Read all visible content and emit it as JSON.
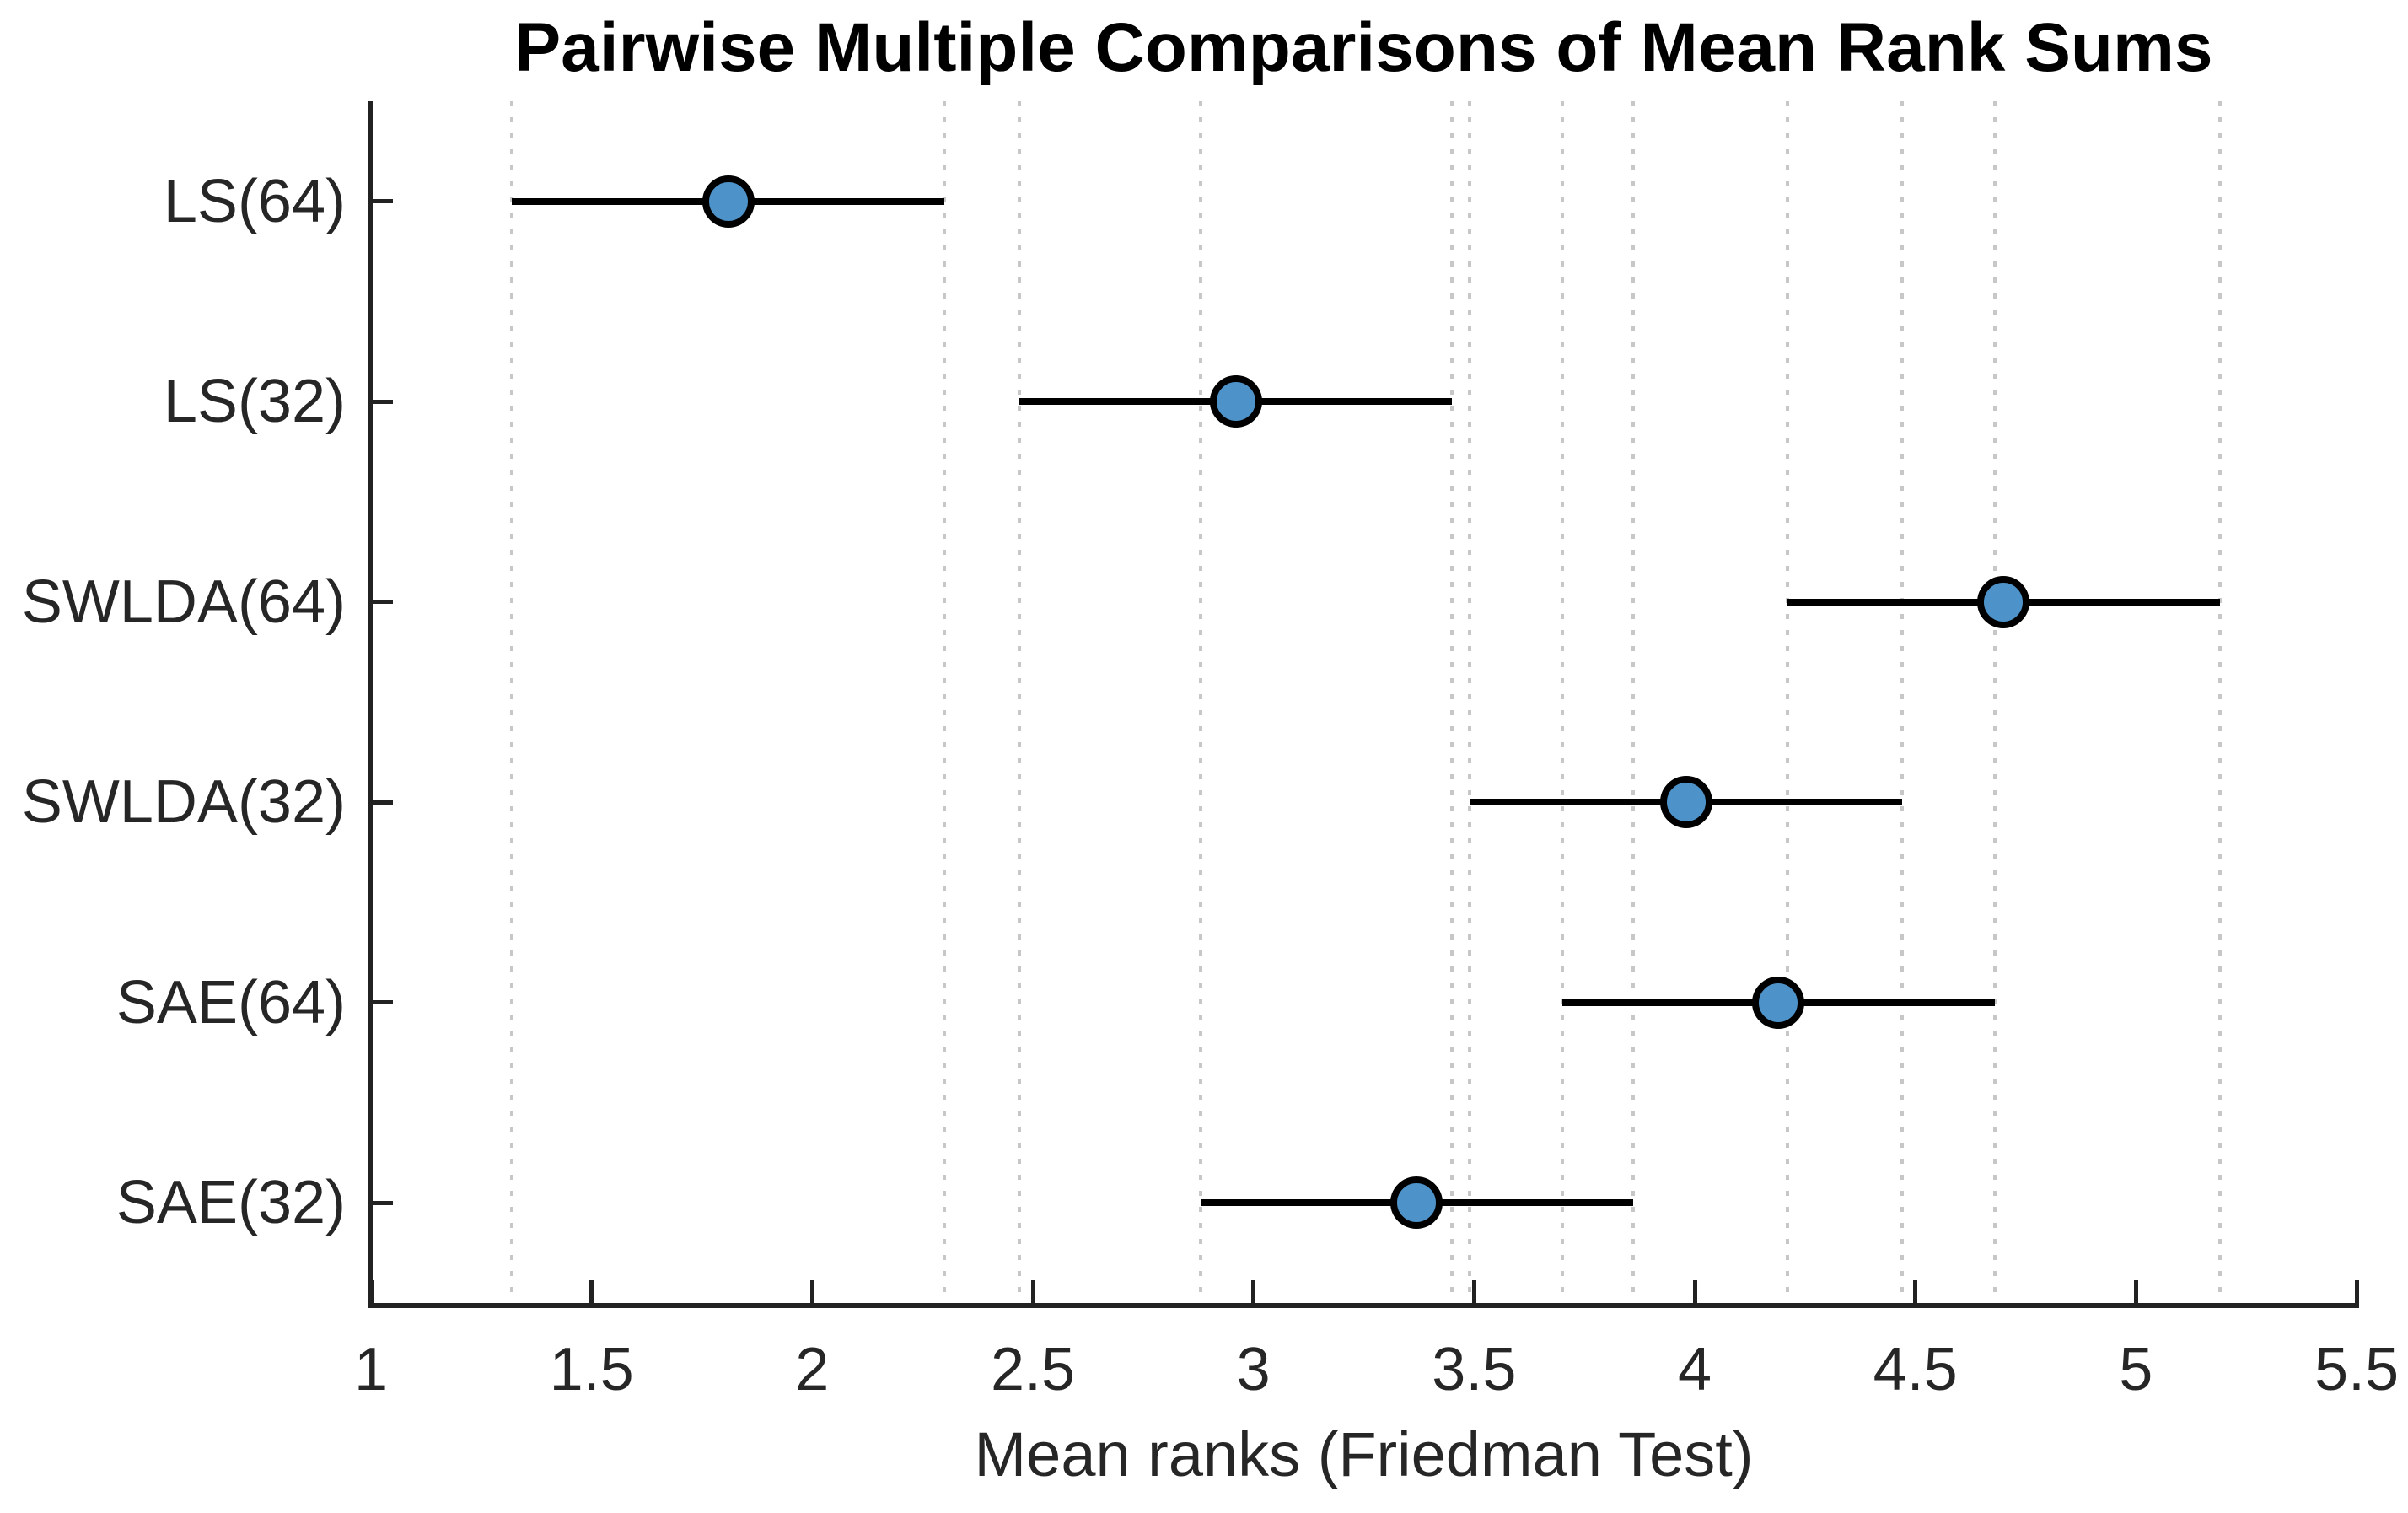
{
  "figure": {
    "title": "Pairwise Multiple Comparisons of Mean Rank Sums",
    "xlabel": "Mean ranks (Friedman Test)"
  },
  "chart_data": {
    "type": "scatter",
    "variant": "mean-rank comparison intervals (multcompare-style dot with horizontal CI line)",
    "title": "Pairwise Multiple Comparisons of Mean Rank Sums",
    "xlabel": "Mean ranks (Friedman Test)",
    "ylabel": "",
    "xlim": [
      1,
      5.5
    ],
    "x_tick_values": [
      1,
      1.5,
      2,
      2.5,
      3,
      3.5,
      4,
      4.5,
      5,
      5.5
    ],
    "x_tick_labels": [
      "1",
      "1.5",
      "2",
      "2.5",
      "3",
      "3.5",
      "4",
      "4.5",
      "5",
      "5.5"
    ],
    "categories": [
      "LS(64)",
      "LS(32)",
      "SWLDA(64)",
      "SWLDA(32)",
      "SAE(64)",
      "SAE(32)"
    ],
    "series": [
      {
        "name": "mean rank",
        "marker": "circle",
        "values": [
          1.81,
          2.96,
          4.7,
          3.98,
          4.19,
          3.37
        ],
        "intervals": [
          [
            1.32,
            2.3
          ],
          [
            2.47,
            3.45
          ],
          [
            4.21,
            5.19
          ],
          [
            3.49,
            4.47
          ],
          [
            3.7,
            4.68
          ],
          [
            2.88,
            3.86
          ]
        ]
      }
    ],
    "grid": {
      "vertical_dotted_lines_at_interval_endpoints": true,
      "style": "dotted"
    },
    "legend": "none",
    "axes_box": "left and bottom only, ticks pointing inward",
    "colors": {
      "marker_fill": "#4d93c9",
      "marker_edge": "#000000",
      "interval_line": "#000000",
      "gridline": "#c7c7c7",
      "axis": "#222222",
      "tick_label": "#262626",
      "title": "#000000"
    }
  }
}
